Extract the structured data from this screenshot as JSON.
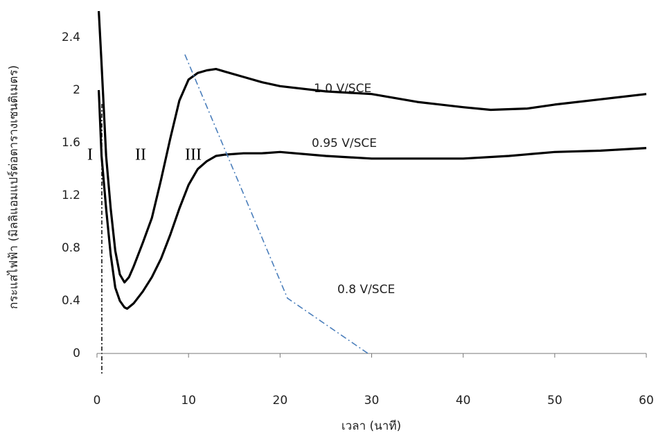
{
  "chart_data": {
    "type": "line",
    "xlabel": "เวลา (นาที)",
    "ylabel": "กระแสไฟฟ้า (มิลลิแอมแปร์ต่อตารางเซนติเมตร)",
    "xlim": [
      0,
      60
    ],
    "xticks": [
      0,
      10,
      20,
      30,
      40,
      50,
      60
    ],
    "ylim": [
      0,
      2.6
    ],
    "yticks": [
      0,
      0.4,
      0.8,
      1.2,
      1.6,
      2,
      2.4
    ],
    "grid": false,
    "annotations": [
      "I",
      "II",
      "III"
    ],
    "series": [
      {
        "name": "1.0  V/SCE",
        "color": "#000000",
        "x": [
          0.2,
          0.5,
          1,
          1.5,
          2,
          2.5,
          3,
          3.5,
          4,
          5,
          6,
          7,
          8,
          9,
          10,
          11,
          12,
          13,
          14,
          16,
          18,
          20,
          25,
          30,
          35,
          40,
          43,
          47,
          50,
          55,
          60
        ],
        "values": [
          2.6,
          2.2,
          1.5,
          1.1,
          0.78,
          0.6,
          0.54,
          0.58,
          0.66,
          0.84,
          1.03,
          1.32,
          1.63,
          1.92,
          2.08,
          2.13,
          2.15,
          2.16,
          2.14,
          2.1,
          2.06,
          2.03,
          1.99,
          1.97,
          1.91,
          1.87,
          1.85,
          1.86,
          1.89,
          1.93,
          1.97
        ]
      },
      {
        "name": "0.95  V/SCE",
        "color": "#000000",
        "x": [
          0.2,
          0.5,
          1,
          1.5,
          2,
          2.5,
          3,
          3.3,
          4,
          5,
          6,
          7,
          8,
          9,
          10,
          11,
          12,
          13,
          14,
          16,
          18,
          20,
          25,
          30,
          35,
          40,
          45,
          50,
          55,
          60
        ],
        "values": [
          2.0,
          1.5,
          1.1,
          0.75,
          0.5,
          0.4,
          0.35,
          0.34,
          0.38,
          0.47,
          0.58,
          0.72,
          0.9,
          1.1,
          1.28,
          1.4,
          1.46,
          1.5,
          1.51,
          1.52,
          1.52,
          1.53,
          1.5,
          1.48,
          1.48,
          1.48,
          1.5,
          1.53,
          1.54,
          1.56
        ]
      },
      {
        "name": "0.8 V/SCE",
        "color": "#4a7ebb",
        "dash": "dashdot",
        "x": [
          9.6,
          20.8,
          29.6
        ],
        "values": [
          2.27,
          0.42,
          0
        ]
      }
    ]
  }
}
